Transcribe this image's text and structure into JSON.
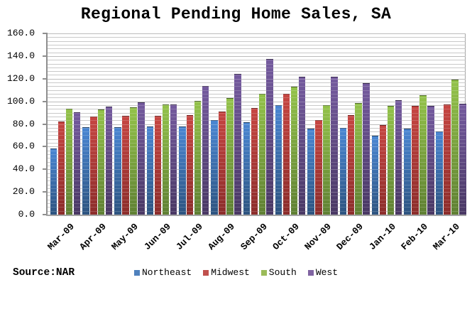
{
  "title": "Regional Pending Home Sales, SA",
  "source_label": "Source:NAR",
  "chart_data": {
    "type": "bar",
    "title": "Regional Pending Home Sales, SA",
    "categories": [
      "Mar-09",
      "Apr-09",
      "May-09",
      "Jun-09",
      "Jul-09",
      "Aug-09",
      "Sep-09",
      "Oct-09",
      "Nov-09",
      "Dec-09",
      "Jan-10",
      "Feb-10",
      "Mar-10"
    ],
    "series": [
      {
        "name": "Northeast",
        "color": "#4F81BD",
        "gradient": [
          "#4a86d2",
          "#2d5480"
        ],
        "values": [
          58.3,
          77.4,
          77.3,
          78.0,
          78.0,
          83.4,
          81.8,
          96.8,
          76.0,
          76.3,
          69.6,
          76.0,
          73.6
        ]
      },
      {
        "name": "Midwest",
        "color": "#C0504D",
        "gradient": [
          "#c64642",
          "#8c2d2b"
        ],
        "values": [
          82.5,
          86.9,
          87.4,
          87.4,
          88.0,
          91.0,
          94.0,
          106.5,
          83.2,
          87.6,
          79.1,
          96.0,
          97.5
        ]
      },
      {
        "name": "South",
        "color": "#9BBB59",
        "gradient": [
          "#93c24a",
          "#5f8033"
        ],
        "values": [
          93.3,
          93.0,
          94.9,
          97.3,
          100.2,
          103.1,
          106.5,
          113.1,
          96.6,
          98.4,
          96.0,
          105.5,
          119.4
        ]
      },
      {
        "name": "West",
        "color": "#8064A2",
        "gradient": [
          "#745a9e",
          "#493864"
        ],
        "values": [
          90.5,
          95.2,
          98.9,
          97.5,
          113.8,
          124.0,
          137.2,
          121.9,
          121.5,
          116.3,
          101.3,
          96.2,
          98.1
        ]
      }
    ],
    "ylim": [
      0,
      160
    ],
    "y_major_unit": 20,
    "y_minor_divisions": 6,
    "y_tick_labels": [
      "160.0",
      "140.0",
      "120.0",
      "100.0",
      "80.0",
      "60.0",
      "40.0",
      "20.0",
      "0.0"
    ],
    "xlabel": "",
    "ylabel": "",
    "grid": true,
    "legend_position": "bottom"
  }
}
